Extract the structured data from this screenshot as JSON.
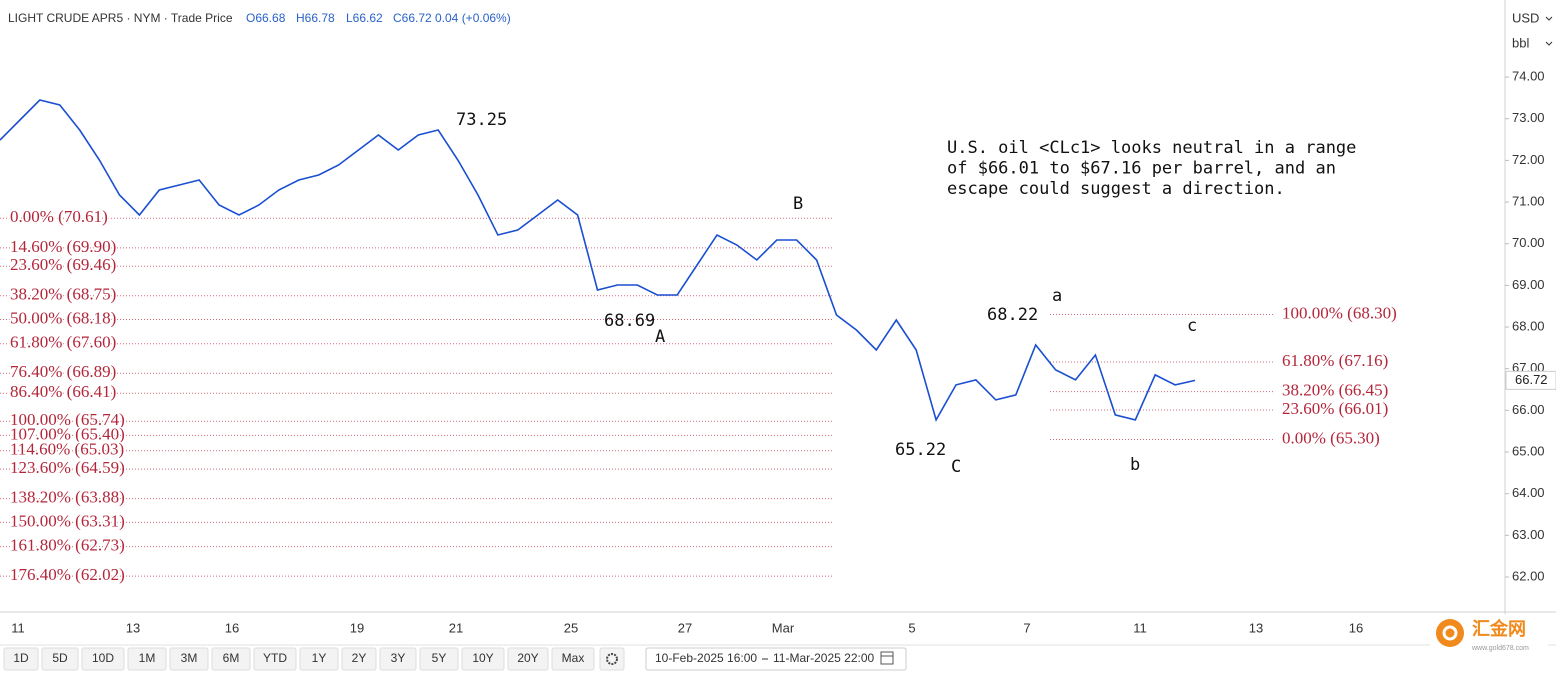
{
  "chart_data": {
    "type": "line",
    "header": {
      "symbol": "LIGHT CRUDE APR5 · NYM · Trade Price",
      "open": "O66.68",
      "high": "H66.78",
      "low": "L66.62",
      "close": "C66.72",
      "change": "0.04 (+0.06%)"
    },
    "currency": "USD",
    "unit": "bbl",
    "series": [
      {
        "color": "#1a4fd0",
        "values": [
          72.49,
          72.97,
          73.45,
          73.33,
          72.73,
          72.0,
          71.17,
          70.69,
          71.29,
          71.41,
          71.53,
          70.93,
          70.69,
          70.93,
          71.29,
          71.53,
          71.65,
          71.89,
          72.25,
          72.61,
          72.25,
          72.61,
          72.73,
          72.0,
          71.17,
          70.21,
          70.33,
          70.69,
          71.05,
          70.69,
          68.89,
          69.01,
          69.01,
          68.77,
          68.77,
          69.49,
          70.21,
          69.97,
          69.61,
          70.09,
          70.09,
          69.61,
          68.29,
          67.93,
          67.45,
          68.17,
          67.45,
          65.77,
          66.61,
          66.73,
          66.25,
          66.37,
          67.57,
          66.97,
          66.73,
          67.33,
          65.89,
          65.77,
          66.85,
          66.61,
          66.72
        ]
      }
    ],
    "ylim": [
      61.16,
      75.85
    ],
    "yticks": [
      {
        "value": 62,
        "label": "62.00"
      },
      {
        "value": 63,
        "label": "63.00"
      },
      {
        "value": 64,
        "label": "64.00"
      },
      {
        "value": 65,
        "label": "65.00"
      },
      {
        "value": 66,
        "label": "66.00"
      },
      {
        "value": 67,
        "label": "67.00"
      },
      {
        "value": 68,
        "label": "68.00"
      },
      {
        "value": 69,
        "label": "69.00"
      },
      {
        "value": 70,
        "label": "70.00"
      },
      {
        "value": 71,
        "label": "71.00"
      },
      {
        "value": 72,
        "label": "72.00"
      },
      {
        "value": 73,
        "label": "73.00"
      },
      {
        "value": 74,
        "label": "74.00"
      }
    ],
    "x_labels": [
      "11",
      "13",
      "16",
      "19",
      "21",
      "25",
      "27",
      "Mar",
      "5",
      "7",
      "11",
      "13",
      "16"
    ],
    "fib_left": [
      {
        "label": "0.00% (70.61)",
        "value": 70.61
      },
      {
        "label": "14.60% (69.90)",
        "value": 69.9
      },
      {
        "label": "23.60% (69.46)",
        "value": 69.46
      },
      {
        "label": "38.20% (68.75)",
        "value": 68.75
      },
      {
        "label": "50.00% (68.18)",
        "value": 68.18
      },
      {
        "label": "61.80% (67.60)",
        "value": 67.6
      },
      {
        "label": "76.40% (66.89)",
        "value": 66.89
      },
      {
        "label": "86.40% (66.41)",
        "value": 66.41
      },
      {
        "label": "100.00% (65.74)",
        "value": 65.74
      },
      {
        "label": "107.00% (65.40)",
        "value": 65.4
      },
      {
        "label": "114.60% (65.03)",
        "value": 65.03
      },
      {
        "label": "123.60% (64.59)",
        "value": 64.59
      },
      {
        "label": "138.20% (63.88)",
        "value": 63.88
      },
      {
        "label": "150.00% (63.31)",
        "value": 63.31
      },
      {
        "label": "161.80% (62.73)",
        "value": 62.73
      },
      {
        "label": "176.40% (62.02)",
        "value": 62.02
      }
    ],
    "fib_right": [
      {
        "label": "100.00% (68.30)",
        "value": 68.3
      },
      {
        "label": "61.80% (67.16)",
        "value": 67.16
      },
      {
        "label": "38.20% (66.45)",
        "value": 66.45
      },
      {
        "label": "23.60% (66.01)",
        "value": 66.01
      },
      {
        "label": "0.00% (65.30)",
        "value": 65.3
      }
    ],
    "annotations": [
      "73.25",
      "68.69",
      "A",
      "B",
      "65.22",
      "C",
      "68.22",
      "a",
      "b",
      "c"
    ],
    "note": [
      "U.S. oil <CLc1> looks neutral in a range",
      "of $66.01 to $67.16 per barrel, and an",
      "escape could suggest a direction."
    ],
    "toolbar": [
      "1D",
      "5D",
      "10D",
      "1M",
      "3M",
      "6M",
      "YTD",
      "1Y",
      "2Y",
      "3Y",
      "5Y",
      "10Y",
      "20Y",
      "Max"
    ],
    "date_range": [
      "10-Feb-2025 16:00",
      "11-Mar-2025 22:00"
    ],
    "logo": [
      "汇金网",
      "www.gold678.com"
    ]
  }
}
